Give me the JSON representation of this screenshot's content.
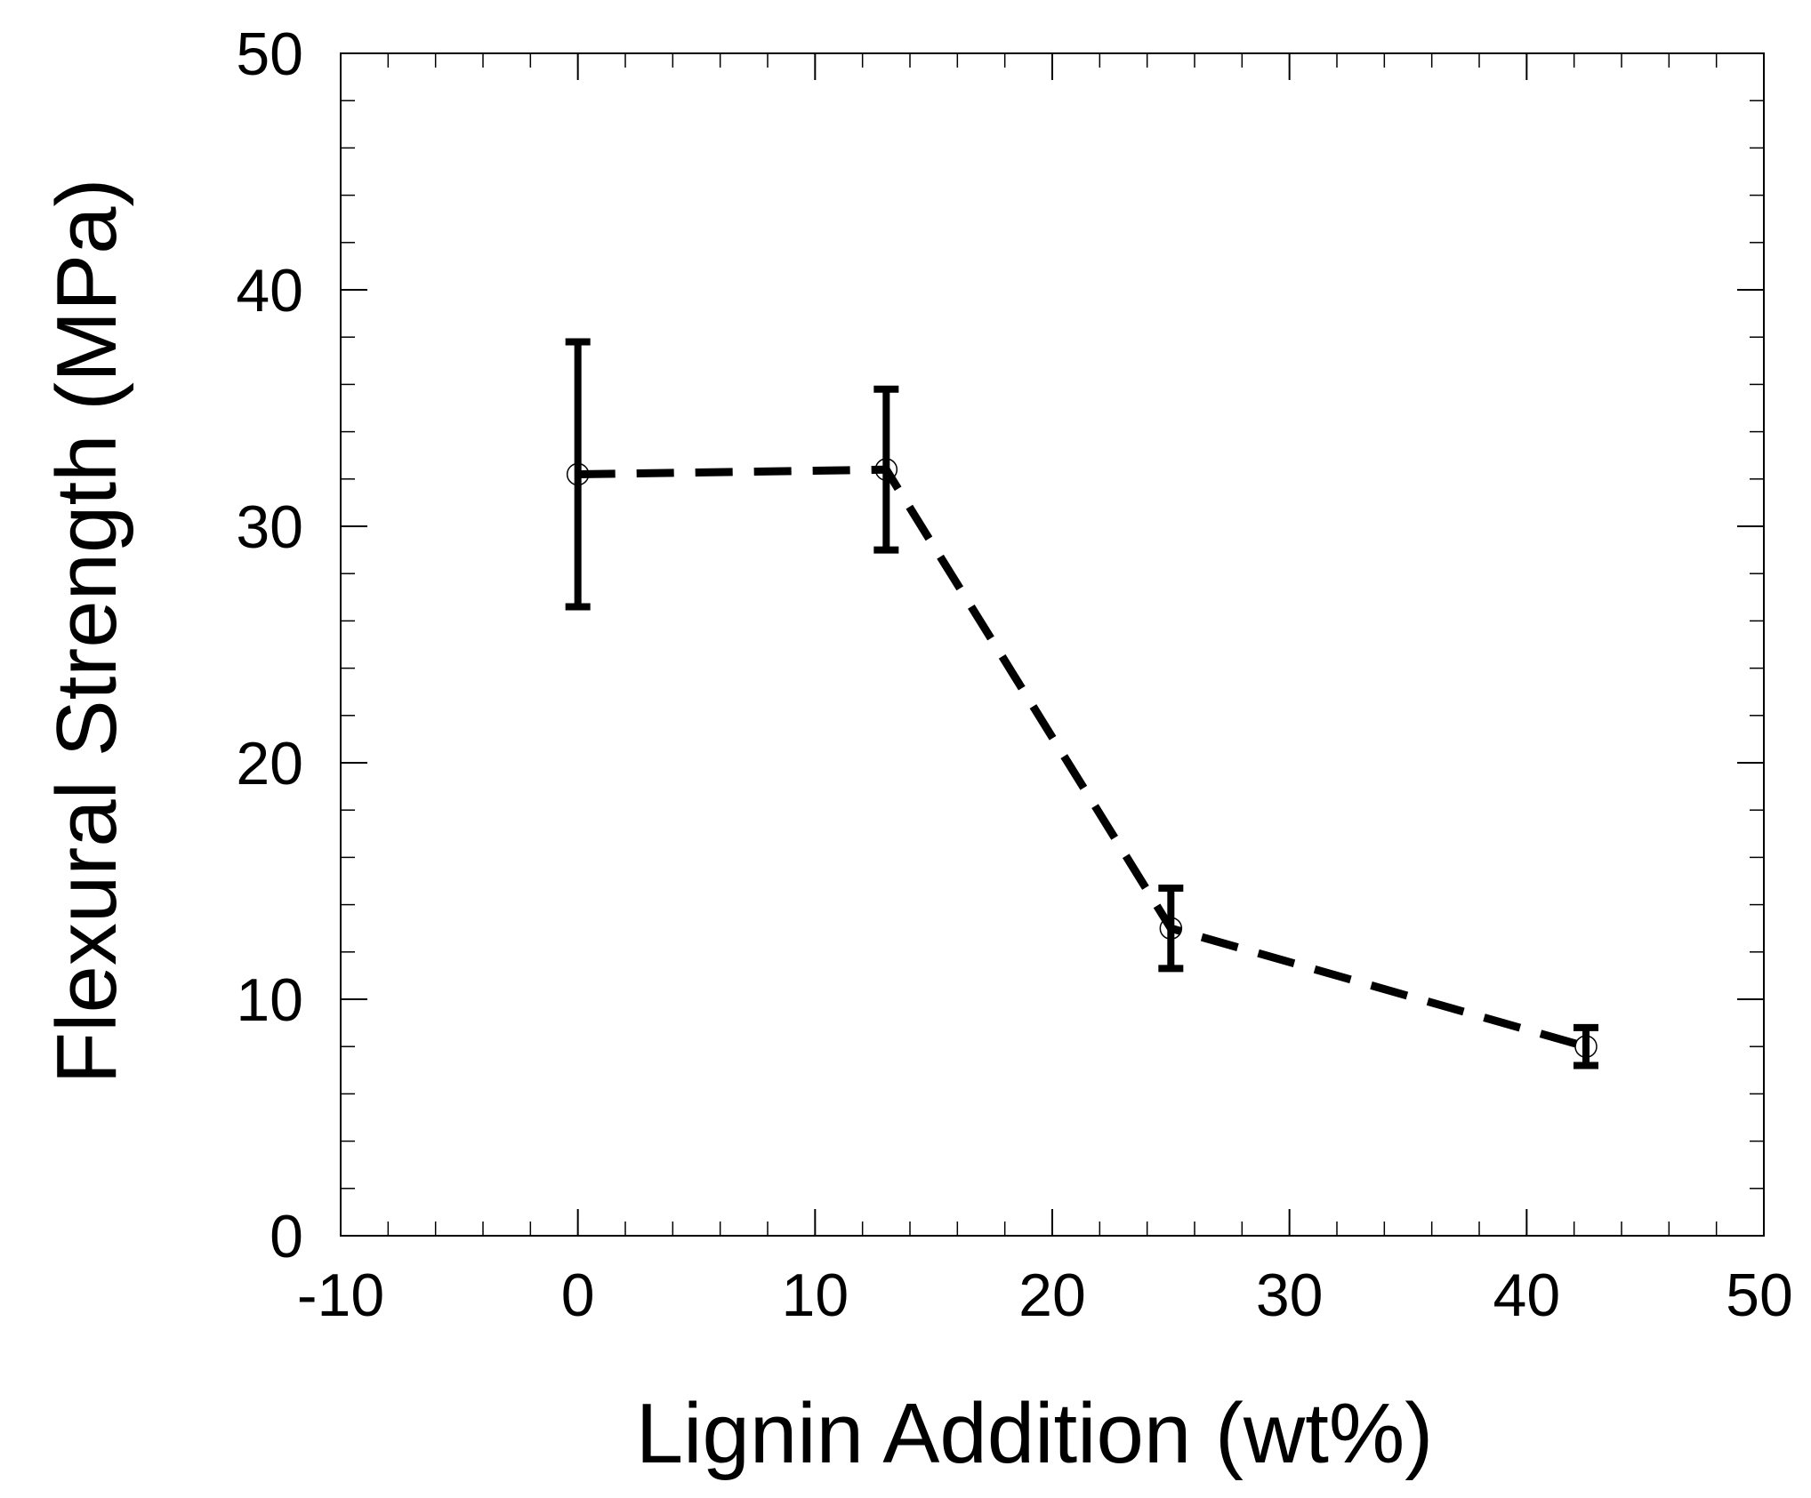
{
  "chart_data": {
    "type": "scatter",
    "title": "",
    "xlabel": "Lignin Addition (wt%)",
    "ylabel": "Flexural Strength (MPa)",
    "xlim": [
      -10,
      50
    ],
    "ylim": [
      0,
      50
    ],
    "x_ticks": [
      -10,
      0,
      10,
      20,
      30,
      40,
      50
    ],
    "y_ticks": [
      0,
      10,
      20,
      30,
      40,
      50
    ],
    "x_minor_step": 2,
    "y_minor_step": 2,
    "grid": false,
    "legend": "none",
    "series": [
      {
        "marker": "open-circle",
        "line_style": "dashed",
        "color": "#000000",
        "x": [
          0,
          13,
          25,
          42.5
        ],
        "y": [
          32.2,
          32.4,
          13.0,
          8.0
        ],
        "error": [
          5.6,
          3.4,
          1.7,
          0.8
        ]
      }
    ]
  }
}
